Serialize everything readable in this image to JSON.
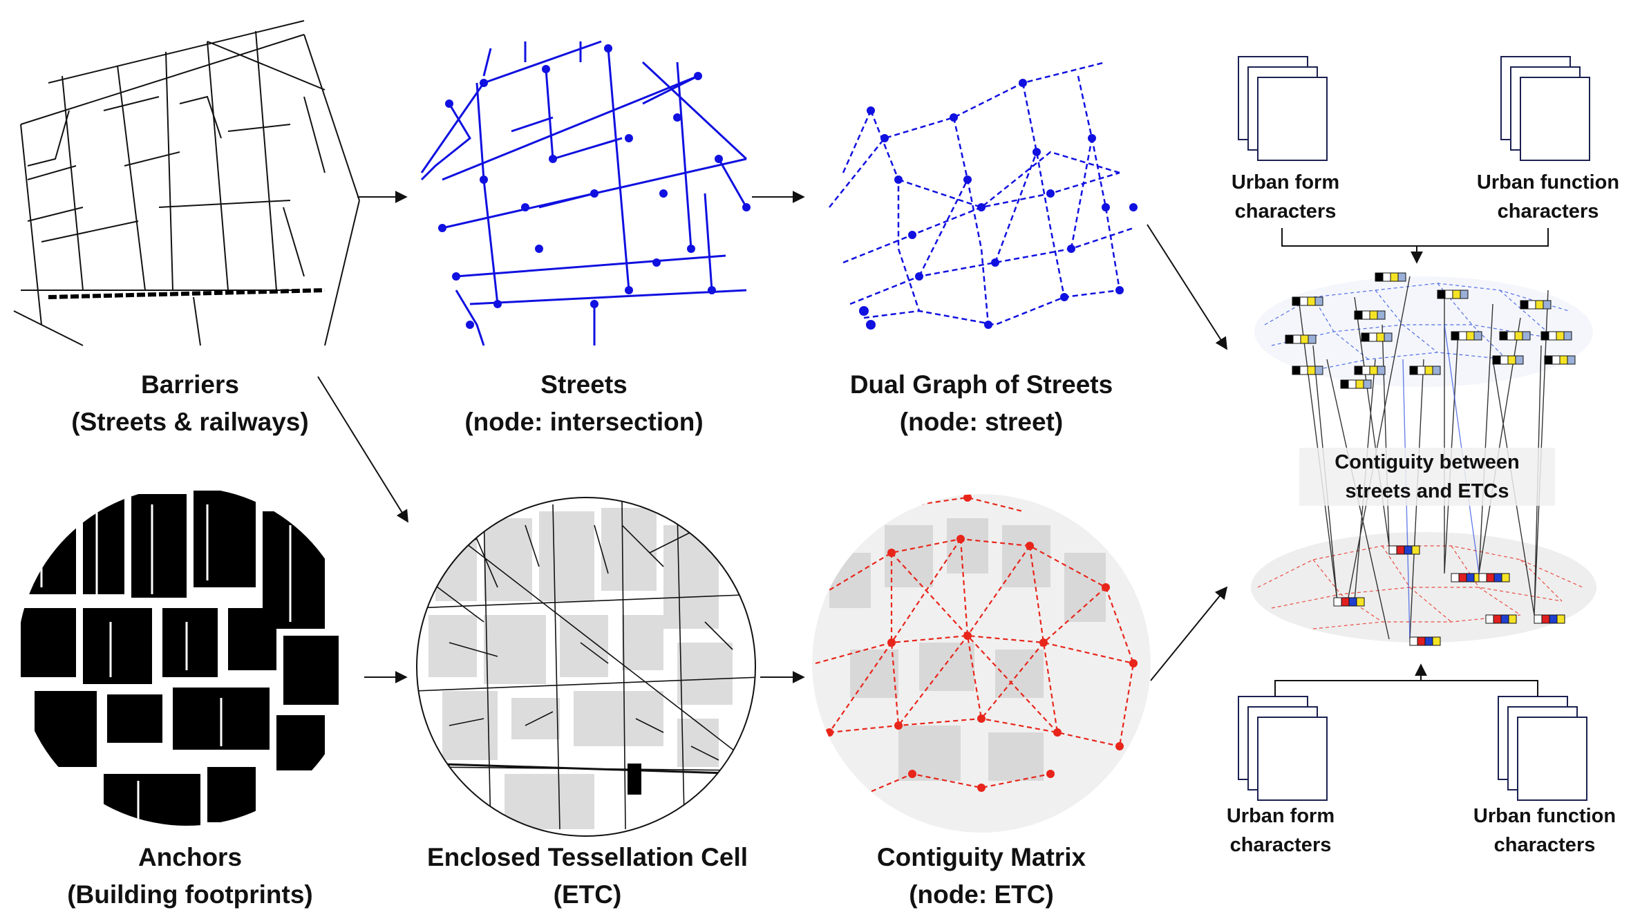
{
  "panels": {
    "barriers": {
      "title": "Barriers",
      "subtitle": "(Streets & railways)"
    },
    "streets": {
      "title": "Streets",
      "subtitle": "(node: intersection)"
    },
    "dual_graph": {
      "title": "Dual Graph of Streets",
      "subtitle": "(node: street)"
    },
    "anchors": {
      "title": "Anchors",
      "subtitle": "(Building footprints)"
    },
    "etc": {
      "title": "Enclosed Tessellation Cell",
      "subtitle": "(ETC)"
    },
    "contiguity": {
      "title": "Contiguity Matrix",
      "subtitle": "(node: ETC)"
    }
  },
  "characters": {
    "top_form": {
      "line1": "Urban form",
      "line2": "characters"
    },
    "top_function": {
      "line1": "Urban function",
      "line2": "characters"
    },
    "bottom_form": {
      "line1": "Urban form",
      "line2": "characters"
    },
    "bottom_function": {
      "line1": "Urban function",
      "line2": "characters"
    }
  },
  "linkage": {
    "line1": "Contiguity between",
    "line2": "streets and ETCs"
  },
  "colors": {
    "street_graph": "#1010e0",
    "etc_graph": "#e8251b",
    "building": "#000000",
    "etc_fill": "#dcdcdc",
    "feature_yellow": "#f5e326",
    "feature_blue": "#2040d0",
    "feature_red": "#e02020",
    "feature_lightblue": "#9ab0d8"
  }
}
